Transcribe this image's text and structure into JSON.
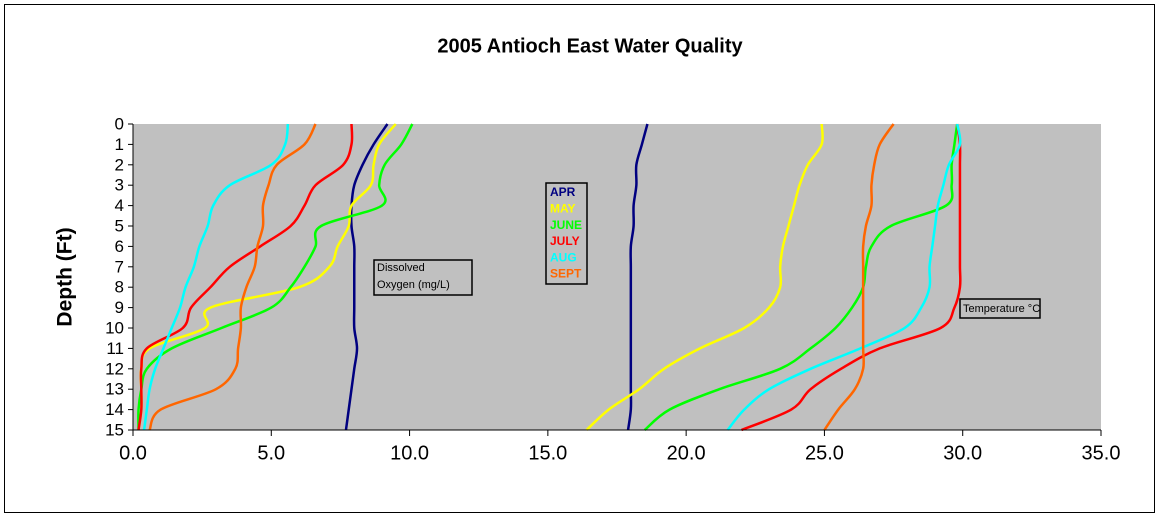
{
  "chart_data": {
    "type": "profile",
    "title": "2005 Antioch East Water Quality",
    "y_label": "Depth (Ft)",
    "annotations": [
      "Dissolved Oxygen (mg/L)",
      "Temperature °C"
    ],
    "y": [
      0,
      1,
      2,
      3,
      4,
      5,
      6,
      7,
      8,
      9,
      10,
      11,
      12,
      13,
      14,
      15
    ],
    "ylim": [
      0,
      15
    ],
    "y_inverted": true,
    "yticks": [
      0,
      1,
      2,
      3,
      4,
      5,
      6,
      7,
      8,
      9,
      10,
      11,
      12,
      13,
      14,
      15
    ],
    "xlim": [
      0,
      35
    ],
    "xticks": [
      {
        "value": 0,
        "label": "0.0"
      },
      {
        "value": 5,
        "label": "5.0"
      },
      {
        "value": 10,
        "label": "10.0"
      },
      {
        "value": 15,
        "label": "15.0"
      },
      {
        "value": 20,
        "label": "20.0"
      },
      {
        "value": 25,
        "label": "25.0"
      },
      {
        "value": 30,
        "label": "30.0"
      },
      {
        "value": 35,
        "label": "35.0"
      }
    ],
    "series": [
      {
        "name": "APR",
        "color": "#000080",
        "values": [
          9.2,
          8.7,
          8.3,
          8.0,
          7.9,
          7.9,
          8.0,
          8.0,
          8.0,
          8.0,
          8.0,
          8.1,
          8.0,
          7.9,
          7.8,
          7.7
        ],
        "temperature": [
          18.6,
          18.4,
          18.2,
          18.2,
          18.1,
          18.1,
          18.0,
          18.0,
          18.0,
          18.0,
          18.0,
          18.0,
          18.0,
          18.0,
          18.0,
          17.9
        ]
      },
      {
        "name": "MAY",
        "color": "#ffff00",
        "values": [
          9.5,
          8.9,
          8.7,
          8.6,
          7.9,
          7.8,
          7.4,
          7.1,
          6.0,
          2.8,
          2.6,
          0.6,
          0.3,
          0.3,
          0.3,
          0.2
        ],
        "temperature": [
          24.9,
          24.9,
          24.4,
          24.1,
          23.9,
          23.7,
          23.5,
          23.4,
          23.4,
          23.0,
          22.1,
          20.5,
          19.2,
          18.3,
          17.2,
          16.4
        ]
      },
      {
        "name": "JUNE",
        "color": "#00ff00",
        "values": [
          10.1,
          9.7,
          9.1,
          8.9,
          9.0,
          6.8,
          6.6,
          6.2,
          5.7,
          5.0,
          3.2,
          1.4,
          0.5,
          0.3,
          0.2,
          0.2
        ],
        "temperature": [
          29.8,
          29.7,
          29.6,
          29.6,
          29.4,
          27.4,
          26.7,
          26.5,
          26.4,
          26.0,
          25.4,
          24.5,
          23.4,
          21.2,
          19.4,
          18.5
        ]
      },
      {
        "name": "JULY",
        "color": "#ff0000",
        "values": [
          7.9,
          7.9,
          7.6,
          6.6,
          6.2,
          5.7,
          4.6,
          3.5,
          2.8,
          2.1,
          1.8,
          0.5,
          0.3,
          0.3,
          0.3,
          0.2
        ],
        "temperature": [
          29.8,
          29.9,
          29.9,
          29.9,
          29.9,
          29.9,
          29.9,
          29.9,
          29.9,
          29.7,
          29.2,
          27.0,
          25.6,
          24.5,
          23.8,
          22.0
        ]
      },
      {
        "name": "AUG",
        "color": "#00ffff",
        "values": [
          5.6,
          5.5,
          5.0,
          3.5,
          2.9,
          2.7,
          2.4,
          2.2,
          1.9,
          1.7,
          1.4,
          1.1,
          0.8,
          0.6,
          0.5,
          0.4
        ],
        "temperature": [
          29.8,
          29.9,
          29.5,
          29.3,
          29.1,
          29.0,
          28.9,
          28.8,
          28.8,
          28.5,
          27.9,
          26.3,
          24.5,
          23.0,
          22.1,
          21.5
        ]
      },
      {
        "name": "SEPT",
        "color": "#ff6600",
        "values": [
          6.6,
          6.2,
          5.2,
          4.9,
          4.7,
          4.7,
          4.5,
          4.4,
          4.1,
          3.9,
          3.9,
          3.8,
          3.7,
          3.0,
          1.0,
          0.6
        ],
        "temperature": [
          27.5,
          27.0,
          26.8,
          26.7,
          26.7,
          26.5,
          26.4,
          26.4,
          26.4,
          26.4,
          26.4,
          26.4,
          26.4,
          26.1,
          25.5,
          25.0
        ]
      }
    ]
  }
}
